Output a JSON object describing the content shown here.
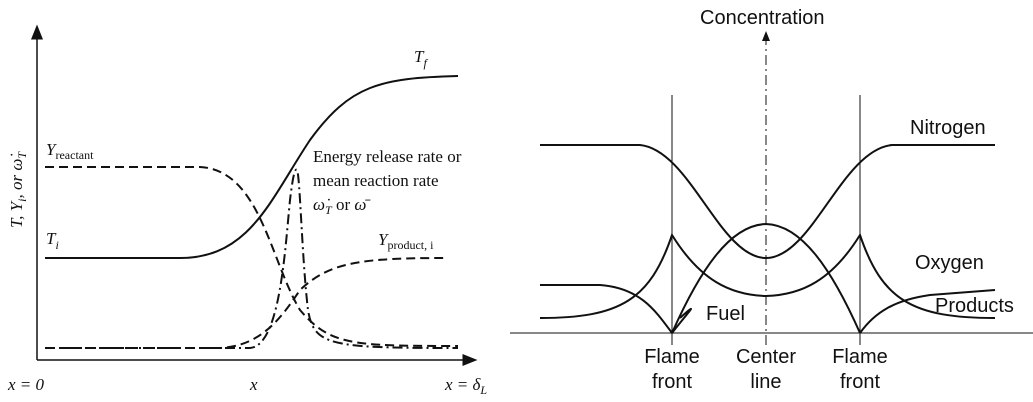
{
  "left": {
    "y_axis_label": {
      "parts": [
        "T, Y",
        "i",
        ", or ω̇",
        "T"
      ]
    },
    "t_final": {
      "base": "T",
      "sub": "f"
    },
    "t_initial": {
      "base": "T",
      "sub": "i"
    },
    "y_reactant": {
      "base": "Y",
      "sub": "reactant"
    },
    "y_product": {
      "base": "Y",
      "sub": "product, i"
    },
    "energy_label": {
      "line1": "Energy release rate or",
      "line2": "mean reaction rate",
      "line3": [
        "ω̇",
        "T",
        " or ",
        "ω̄"
      ]
    },
    "x_start": "x = 0",
    "x_mid": "x",
    "x_end": {
      "base": "x = δ",
      "sub": "L"
    }
  },
  "right": {
    "y_axis_label": "Concentration",
    "curves": [
      "Nitrogen",
      "Oxygen",
      "Products",
      "Fuel"
    ],
    "markers": [
      {
        "line1": "Flame",
        "line2": "front"
      },
      {
        "line1": "Center",
        "line2": "line"
      },
      {
        "line1": "Flame",
        "line2": "front"
      }
    ]
  }
}
